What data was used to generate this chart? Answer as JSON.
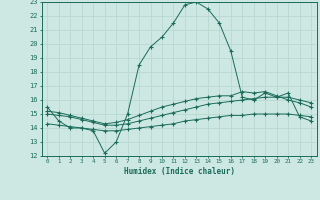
{
  "xlabel": "Humidex (Indice chaleur)",
  "xlim": [
    -0.5,
    23.5
  ],
  "ylim": [
    12,
    23
  ],
  "xticks": [
    0,
    1,
    2,
    3,
    4,
    5,
    6,
    7,
    8,
    9,
    10,
    11,
    12,
    13,
    14,
    15,
    16,
    17,
    18,
    19,
    20,
    21,
    22,
    23
  ],
  "yticks": [
    12,
    13,
    14,
    15,
    16,
    17,
    18,
    19,
    20,
    21,
    22,
    23
  ],
  "bg_color": "#cde8e2",
  "line_color": "#1a6b5a",
  "grid_color": "#b8d8d0",
  "line1_x": [
    0,
    1,
    2,
    3,
    4,
    5,
    6,
    7,
    8,
    9,
    10,
    11,
    12,
    13,
    14,
    15,
    16,
    17,
    18,
    19,
    20,
    21,
    22,
    23
  ],
  "line1_y": [
    15.5,
    14.5,
    14.0,
    14.0,
    13.8,
    12.2,
    13.0,
    15.0,
    18.5,
    19.8,
    20.5,
    21.5,
    22.8,
    23.0,
    22.5,
    21.5,
    19.5,
    16.2,
    16.0,
    16.5,
    16.2,
    16.5,
    14.8,
    14.5
  ],
  "line2_x": [
    0,
    1,
    2,
    3,
    4,
    5,
    6,
    7,
    8,
    9,
    10,
    11,
    12,
    13,
    14,
    15,
    16,
    17,
    18,
    19,
    20,
    21,
    22,
    23
  ],
  "line2_y": [
    14.3,
    14.2,
    14.1,
    14.0,
    13.9,
    13.8,
    13.8,
    13.9,
    14.0,
    14.1,
    14.2,
    14.3,
    14.5,
    14.6,
    14.7,
    14.8,
    14.9,
    14.9,
    15.0,
    15.0,
    15.0,
    15.0,
    14.9,
    14.8
  ],
  "line3_x": [
    0,
    1,
    2,
    3,
    4,
    5,
    6,
    7,
    8,
    9,
    10,
    11,
    12,
    13,
    14,
    15,
    16,
    17,
    18,
    19,
    20,
    21,
    22,
    23
  ],
  "line3_y": [
    15.0,
    14.9,
    14.8,
    14.6,
    14.4,
    14.2,
    14.2,
    14.3,
    14.5,
    14.7,
    14.9,
    15.1,
    15.3,
    15.5,
    15.7,
    15.8,
    15.9,
    16.0,
    16.1,
    16.2,
    16.2,
    16.2,
    16.0,
    15.8
  ],
  "line4_x": [
    0,
    1,
    2,
    3,
    4,
    5,
    6,
    7,
    8,
    9,
    10,
    11,
    12,
    13,
    14,
    15,
    16,
    17,
    18,
    19,
    20,
    21,
    22,
    23
  ],
  "line4_y": [
    15.2,
    15.1,
    14.9,
    14.7,
    14.5,
    14.3,
    14.4,
    14.6,
    14.9,
    15.2,
    15.5,
    15.7,
    15.9,
    16.1,
    16.2,
    16.3,
    16.3,
    16.6,
    16.5,
    16.6,
    16.3,
    16.0,
    15.8,
    15.5
  ]
}
